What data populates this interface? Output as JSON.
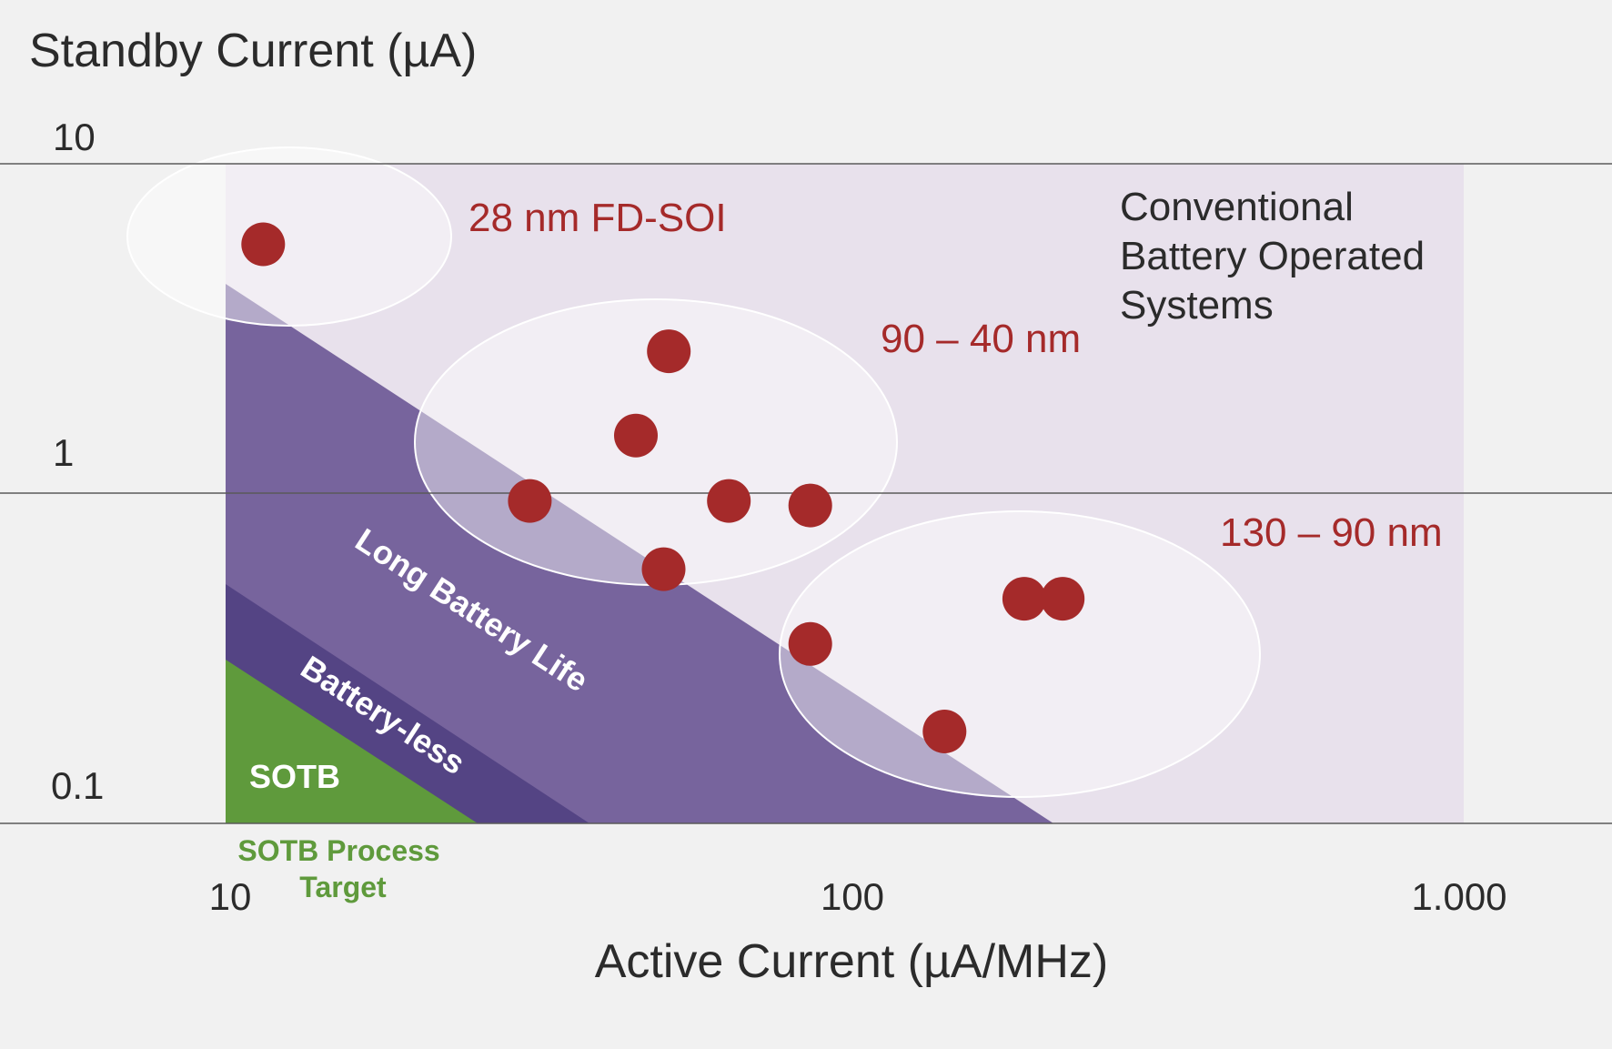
{
  "chart_data": {
    "type": "scatter",
    "x_scale": "log",
    "y_scale": "log",
    "xlim": [
      10,
      1000
    ],
    "ylim": [
      0.1,
      10
    ],
    "xlabel": "Active Current (µA/MHz)",
    "ylabel": "Standby Current (µA)",
    "x_ticks": [
      "10",
      "100",
      "1.000"
    ],
    "y_ticks": [
      "10",
      "1",
      "0.1"
    ],
    "grid": "horizontal",
    "colors": {
      "background": "#f1f1f1",
      "conventional": "#e8e1ec",
      "long_battery": "#77649d",
      "battery_less": "#544484",
      "sotb": "#5f9a3c",
      "points": "#a52a2a",
      "gridline": "#555555"
    },
    "regions": [
      {
        "name": "Conventional Battery Operated Systems",
        "label_lines": [
          "Conventional",
          "Battery Operated",
          "Systems"
        ]
      },
      {
        "name": "Long Battery Life",
        "label": "Long Battery Life"
      },
      {
        "name": "Battery-less",
        "label": "Battery-less"
      },
      {
        "name": "SOTB",
        "label": "SOTB"
      }
    ],
    "series": [
      {
        "name": "28 nm FD-SOI",
        "label": "28 nm FD-SOI",
        "x": [
          11.5
        ],
        "y": [
          5.7
        ]
      },
      {
        "name": "90 – 40 nm",
        "label": "90 – 40 nm",
        "x": [
          52,
          46,
          31,
          65,
          88,
          51
        ],
        "y": [
          2.7,
          1.5,
          0.95,
          0.95,
          0.92,
          0.59
        ]
      },
      {
        "name": "130 – 90 nm",
        "label": "130 – 90 nm",
        "x": [
          88,
          195,
          225,
          145
        ],
        "y": [
          0.35,
          0.48,
          0.48,
          0.19
        ]
      }
    ],
    "annotation": {
      "lines": [
        "SOTB Process",
        "Target"
      ]
    }
  }
}
